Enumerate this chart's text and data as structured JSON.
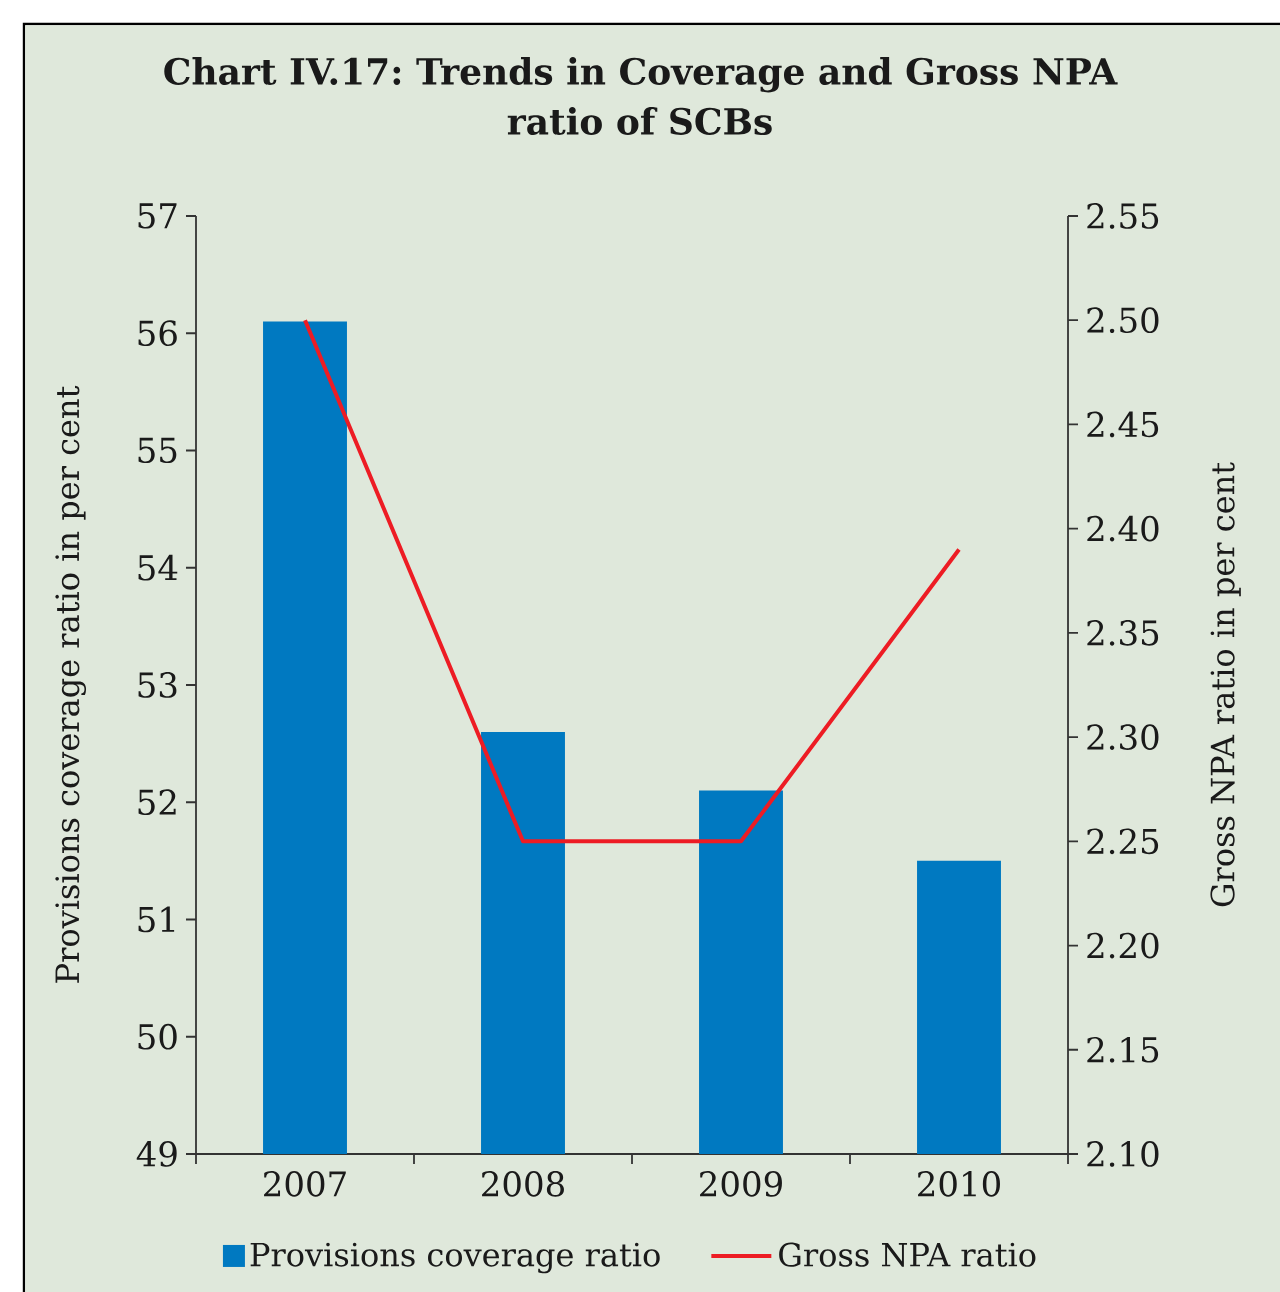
{
  "chart_data": {
    "type": "bar",
    "title": "Chart IV.17: Trends in Coverage and Gross NPA ratio of SCBs",
    "categories": [
      "2007",
      "2008",
      "2009",
      "2010"
    ],
    "series": [
      {
        "name": "Provisions coverage ratio",
        "color": "#0079c1",
        "values": [
          56.1,
          52.6,
          52.1,
          51.5
        ]
      },
      {
        "name": "Gross NPA ratio",
        "type": "line",
        "axis": "y2",
        "color": "#ed1c24",
        "values": [
          2.5,
          2.25,
          2.25,
          2.39
        ]
      }
    ],
    "ylabel": "Provisions coverage ratio in per cent",
    "y2label": "Gross NPA ratio in per cent",
    "ylim": [
      49,
      57
    ],
    "yticks": [
      49,
      50,
      51,
      52,
      53,
      54,
      55,
      56,
      57
    ],
    "y2lim": [
      2.1,
      2.55
    ],
    "y2ticks": [
      {
        "value": 2.1,
        "label": "2.10"
      },
      {
        "value": 2.15,
        "label": "2.15"
      },
      {
        "value": 2.2,
        "label": "2.20"
      },
      {
        "value": 2.25,
        "label": "2.25"
      },
      {
        "value": 2.3,
        "label": "2.30"
      },
      {
        "value": 2.35,
        "label": "2.35"
      },
      {
        "value": 2.4,
        "label": "2.40"
      },
      {
        "value": 2.45,
        "label": "2.45"
      },
      {
        "value": 2.5,
        "label": "2.50"
      },
      {
        "value": 2.55,
        "label": "2.55"
      }
    ],
    "legend": "bottom"
  }
}
